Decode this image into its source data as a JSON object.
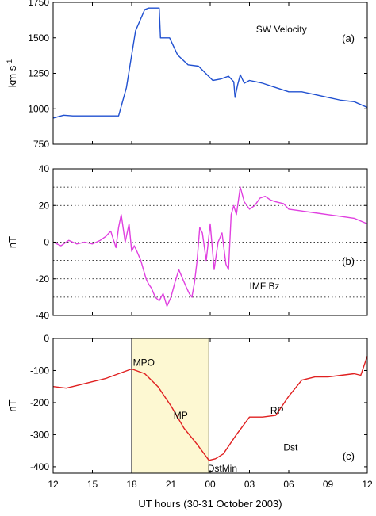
{
  "figure": {
    "xlabel": "UT hours (30-31 October 2003)",
    "x_ticks": [
      12,
      15,
      18,
      21,
      24,
      27,
      30,
      33,
      36
    ],
    "x_tick_labels": [
      "12",
      "15",
      "18",
      "21",
      "00",
      "03",
      "06",
      "09",
      "12"
    ],
    "xlim": [
      12,
      36
    ]
  },
  "chart_data": [
    {
      "type": "line",
      "panel_label": "(a)",
      "ylabel": "km s",
      "ylabel_superscript": "-1",
      "ylim": [
        750,
        1750
      ],
      "y_ticks": [
        750,
        1000,
        1250,
        1500,
        1750
      ],
      "grid": false,
      "annotations": [
        {
          "text": "SW Velocity",
          "x": 27.5,
          "y": 1560
        }
      ],
      "series": [
        {
          "color": "#2050d0",
          "x": [
            12,
            12.8,
            13.5,
            15,
            16,
            17,
            17.6,
            18.3,
            19.0,
            19.3,
            20.1,
            20.2,
            20.9,
            21.5,
            22.3,
            23.1,
            24.2,
            24.8,
            25.4,
            25.8,
            25.9,
            26.1,
            26.3,
            26.6,
            27,
            27.5,
            28,
            29,
            30,
            31,
            32,
            33,
            34,
            35,
            36
          ],
          "y": [
            935,
            955,
            950,
            950,
            950,
            950,
            1150,
            1550,
            1700,
            1710,
            1710,
            1500,
            1500,
            1380,
            1310,
            1300,
            1200,
            1210,
            1230,
            1190,
            1080,
            1170,
            1240,
            1180,
            1200,
            1190,
            1180,
            1150,
            1120,
            1120,
            1100,
            1080,
            1060,
            1050,
            1010
          ]
        }
      ]
    },
    {
      "type": "line",
      "panel_label": "(b)",
      "ylabel": "nT",
      "ylim": [
        -40,
        40
      ],
      "y_ticks": [
        -40,
        -20,
        0,
        20,
        40
      ],
      "grid": true,
      "grid_values": [
        -30,
        -20,
        -10,
        0,
        10,
        20,
        30
      ],
      "annotations": [
        {
          "text": "IMF Bz",
          "x": 27.0,
          "y": -24
        }
      ],
      "series": [
        {
          "color": "#e040e0",
          "x": [
            12,
            12.6,
            13.2,
            13.8,
            14.4,
            15,
            15.6,
            16,
            16.4,
            16.8,
            17.0,
            17.2,
            17.5,
            17.8,
            18.0,
            18.2,
            18.4,
            18.7,
            18.9,
            19.1,
            19.3,
            19.5,
            19.8,
            20.1,
            20.4,
            20.7,
            21.0,
            21.3,
            21.6,
            21.9,
            22.2,
            22.4,
            22.6,
            22.8,
            23.0,
            23.2,
            23.4,
            23.7,
            24.0,
            24.3,
            24.6,
            24.9,
            25.2,
            25.4,
            25.6,
            25.8,
            26.0,
            26.3,
            26.6,
            27.0,
            27.4,
            27.8,
            28.2,
            28.6,
            29,
            29.6,
            30,
            31,
            32,
            33,
            34,
            35,
            36
          ],
          "y": [
            0,
            -2,
            1,
            -1,
            0,
            -1,
            1,
            3,
            6,
            -3,
            8,
            15,
            0,
            10,
            -5,
            -2,
            -5,
            -10,
            -15,
            -20,
            -23,
            -25,
            -30,
            -32,
            -28,
            -35,
            -30,
            -22,
            -15,
            -20,
            -25,
            -28,
            -30,
            -22,
            -10,
            8,
            5,
            -10,
            10,
            -15,
            0,
            5,
            -12,
            -15,
            15,
            20,
            15,
            30,
            22,
            18,
            20,
            24,
            25,
            23,
            22,
            21,
            18,
            17,
            16,
            15,
            14,
            13,
            10
          ]
        }
      ]
    },
    {
      "type": "line",
      "panel_label": "(c)",
      "ylabel": "nT",
      "ylim": [
        -420,
        0
      ],
      "y_ticks": [
        -400,
        -300,
        -200,
        -100,
        0
      ],
      "grid": false,
      "shaded_region": {
        "x": [
          18,
          23.9
        ],
        "color": "#fdf8d2"
      },
      "vlines": [
        18,
        23.9
      ],
      "annotations": [
        {
          "text": "MPO",
          "x": 18.1,
          "y": -75
        },
        {
          "text": "MP",
          "x": 21.2,
          "y": -240
        },
        {
          "text": "RP",
          "x": 28.6,
          "y": -225
        },
        {
          "text": "Dst",
          "x": 29.6,
          "y": -340
        },
        {
          "text": "DstMin",
          "x": 23.8,
          "y": -405
        }
      ],
      "series": [
        {
          "color": "#e02020",
          "x": [
            12,
            13,
            14,
            15,
            16,
            17,
            18,
            19,
            20,
            21,
            22,
            23,
            23.9,
            24.4,
            25,
            26,
            27,
            28,
            29,
            30,
            31,
            32,
            33,
            34,
            35,
            35.5,
            36
          ],
          "y": [
            -150,
            -155,
            -145,
            -135,
            -125,
            -110,
            -95,
            -110,
            -150,
            -210,
            -280,
            -330,
            -380,
            -375,
            -360,
            -300,
            -245,
            -245,
            -240,
            -180,
            -130,
            -120,
            -120,
            -115,
            -110,
            -115,
            -55
          ]
        }
      ]
    }
  ]
}
